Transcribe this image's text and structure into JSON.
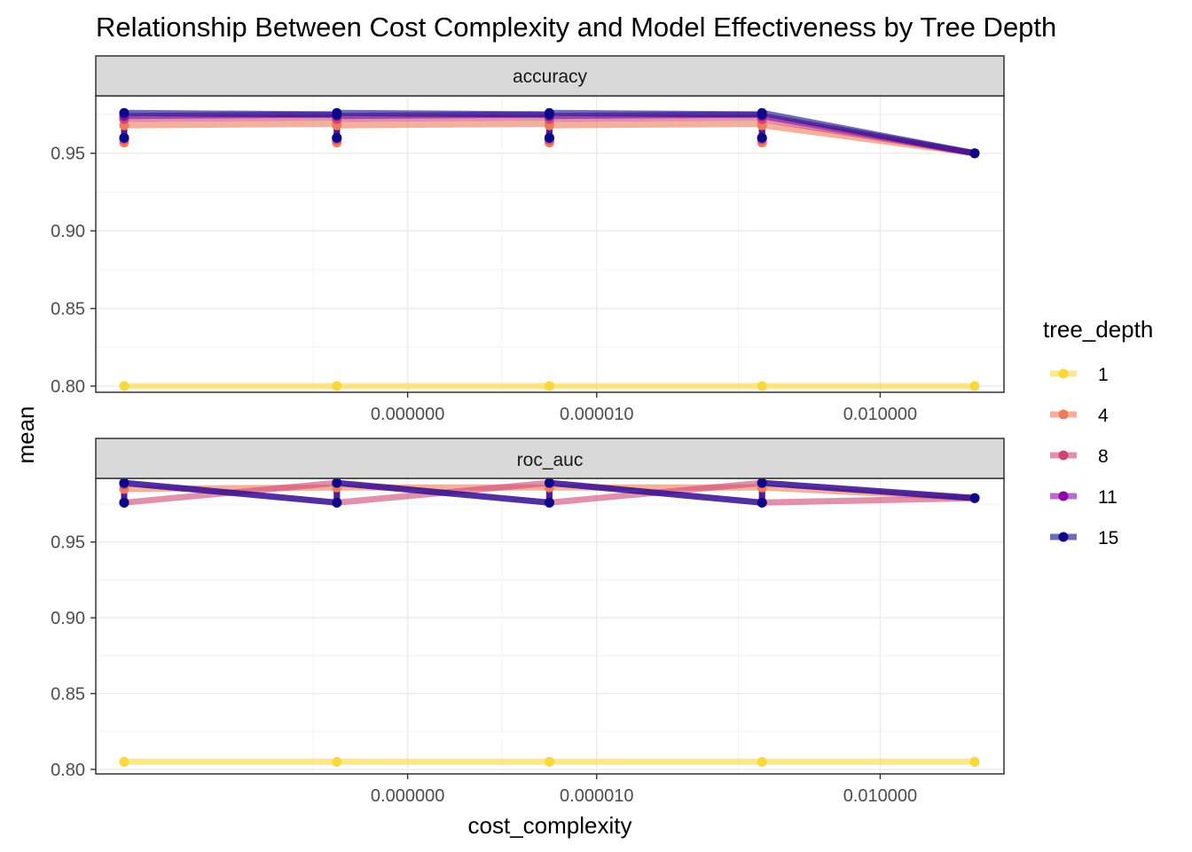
{
  "chart_data": {
    "type": "line",
    "title": "Relationship Between Cost Complexity and Model Effectiveness by Tree Depth",
    "xlabel": "cost_complexity",
    "ylabel": "mean",
    "x_scale": "log10",
    "x": [
      1e-10,
      1.78e-08,
      3.16e-06,
      0.000562,
      0.1
    ],
    "x_tick_values": [
      1e-07,
      1e-05,
      0.01
    ],
    "x_tick_labels": [
      "0.000000",
      "0.000010",
      "0.010000"
    ],
    "grid": true,
    "legend": {
      "title": "tree_depth",
      "position": "right",
      "entries": [
        {
          "label": "1",
          "color": "#F8D83D"
        },
        {
          "label": "4",
          "color": "#EF7B5C"
        },
        {
          "label": "8",
          "color": "#CC4778"
        },
        {
          "label": "11",
          "color": "#8B0AA5"
        },
        {
          "label": "15",
          "color": "#0D0887"
        }
      ]
    },
    "panels": [
      {
        "strip": "accuracy",
        "ylim": [
          0.796,
          0.987
        ],
        "y_ticks": [
          0.8,
          0.85,
          0.9,
          0.95
        ],
        "y_tick_labels": [
          "0.80",
          "0.85",
          "0.90",
          "0.95"
        ],
        "series": [
          {
            "name": "1",
            "points": [
              [
                1e-10,
                0.8
              ],
              [
                1.78e-08,
                0.8
              ],
              [
                3.16e-06,
                0.8
              ],
              [
                0.000562,
                0.8
              ],
              [
                0.1,
                0.8
              ]
            ]
          },
          {
            "name": "4",
            "points": [
              [
                1e-10,
                0.957
              ],
              [
                1e-10,
                0.968
              ],
              [
                1.78e-08,
                0.969
              ],
              [
                1.78e-08,
                0.957
              ],
              [
                1.78e-08,
                0.968
              ],
              [
                3.16e-06,
                0.969
              ],
              [
                3.16e-06,
                0.957
              ],
              [
                3.16e-06,
                0.968
              ],
              [
                0.000562,
                0.969
              ],
              [
                0.000562,
                0.957
              ],
              [
                0.000562,
                0.968
              ],
              [
                0.1,
                0.95
              ]
            ]
          },
          {
            "name": "8",
            "points": [
              [
                1e-10,
                0.959
              ],
              [
                1e-10,
                0.972
              ],
              [
                1.78e-08,
                0.973
              ],
              [
                1.78e-08,
                0.959
              ],
              [
                1.78e-08,
                0.972
              ],
              [
                3.16e-06,
                0.973
              ],
              [
                3.16e-06,
                0.959
              ],
              [
                3.16e-06,
                0.972
              ],
              [
                0.000562,
                0.973
              ],
              [
                0.000562,
                0.959
              ],
              [
                0.000562,
                0.972
              ],
              [
                0.1,
                0.95
              ]
            ]
          },
          {
            "name": "11",
            "points": [
              [
                1e-10,
                0.96
              ],
              [
                1e-10,
                0.974
              ],
              [
                1.78e-08,
                0.975
              ],
              [
                1.78e-08,
                0.96
              ],
              [
                1.78e-08,
                0.974
              ],
              [
                3.16e-06,
                0.975
              ],
              [
                3.16e-06,
                0.96
              ],
              [
                3.16e-06,
                0.974
              ],
              [
                0.000562,
                0.975
              ],
              [
                0.000562,
                0.96
              ],
              [
                0.000562,
                0.974
              ],
              [
                0.1,
                0.95
              ]
            ]
          },
          {
            "name": "15",
            "points": [
              [
                1e-10,
                0.96
              ],
              [
                1e-10,
                0.976
              ],
              [
                1.78e-08,
                0.975
              ],
              [
                1.78e-08,
                0.96
              ],
              [
                1.78e-08,
                0.976
              ],
              [
                3.16e-06,
                0.975
              ],
              [
                3.16e-06,
                0.96
              ],
              [
                3.16e-06,
                0.976
              ],
              [
                0.000562,
                0.975
              ],
              [
                0.000562,
                0.96
              ],
              [
                0.000562,
                0.976
              ],
              [
                0.1,
                0.95
              ]
            ]
          }
        ]
      },
      {
        "strip": "roc_auc",
        "ylim": [
          0.797,
          0.992
        ],
        "y_ticks": [
          0.8,
          0.85,
          0.9,
          0.95
        ],
        "y_tick_labels": [
          "0.80",
          "0.85",
          "0.90",
          "0.95"
        ],
        "series": [
          {
            "name": "1",
            "points": [
              [
                1e-10,
                0.805
              ],
              [
                1.78e-08,
                0.805
              ],
              [
                3.16e-06,
                0.805
              ],
              [
                0.000562,
                0.805
              ],
              [
                0.1,
                0.805
              ]
            ]
          },
          {
            "name": "4",
            "points": [
              [
                1e-10,
                0.985
              ],
              [
                1.78e-08,
                0.986
              ],
              [
                3.16e-06,
                0.986
              ],
              [
                0.000562,
                0.986
              ],
              [
                0.1,
                0.979
              ]
            ]
          },
          {
            "name": "8",
            "points": [
              [
                1e-10,
                0.988
              ],
              [
                1e-10,
                0.976
              ],
              [
                1.78e-08,
                0.989
              ],
              [
                1.78e-08,
                0.976
              ],
              [
                3.16e-06,
                0.989
              ],
              [
                3.16e-06,
                0.976
              ],
              [
                0.000562,
                0.989
              ],
              [
                0.000562,
                0.976
              ],
              [
                0.1,
                0.979
              ]
            ]
          },
          {
            "name": "11",
            "points": [
              [
                1e-10,
                0.976
              ],
              [
                1e-10,
                0.989
              ],
              [
                1.78e-08,
                0.976
              ],
              [
                1.78e-08,
                0.989
              ],
              [
                3.16e-06,
                0.976
              ],
              [
                3.16e-06,
                0.989
              ],
              [
                0.000562,
                0.976
              ],
              [
                0.000562,
                0.989
              ],
              [
                0.1,
                0.979
              ]
            ]
          },
          {
            "name": "15",
            "points": [
              [
                1e-10,
                0.976
              ],
              [
                1e-10,
                0.989
              ],
              [
                1.78e-08,
                0.976
              ],
              [
                1.78e-08,
                0.989
              ],
              [
                3.16e-06,
                0.976
              ],
              [
                3.16e-06,
                0.989
              ],
              [
                0.000562,
                0.976
              ],
              [
                0.000562,
                0.989
              ],
              [
                0.1,
                0.979
              ]
            ]
          }
        ]
      }
    ]
  }
}
